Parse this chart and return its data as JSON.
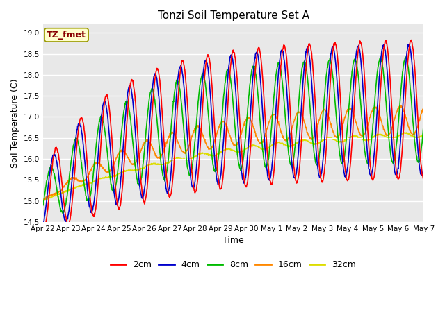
{
  "title": "Tonzi Soil Temperature Set A",
  "xlabel": "Time",
  "ylabel": "Soil Temperature (C)",
  "annotation": "TZ_fmet",
  "ylim": [
    14.5,
    19.2
  ],
  "legend_labels": [
    "2cm",
    "4cm",
    "8cm",
    "16cm",
    "32cm"
  ],
  "line_colors": [
    "#ff0000",
    "#0000cc",
    "#00bb00",
    "#ff8800",
    "#dddd00"
  ],
  "bg_color": "#e8e8e8",
  "annotation_bg": "#ffffcc",
  "annotation_fg": "#880000",
  "xtick_labels": [
    "Apr 22",
    "Apr 23",
    "Apr 24",
    "Apr 25",
    "Apr 26",
    "Apr 27",
    "Apr 28",
    "Apr 29",
    "Apr 30",
    "May 1",
    "May 2",
    "May 3",
    "May 4",
    "May 5",
    "May 6",
    "May 7"
  ]
}
